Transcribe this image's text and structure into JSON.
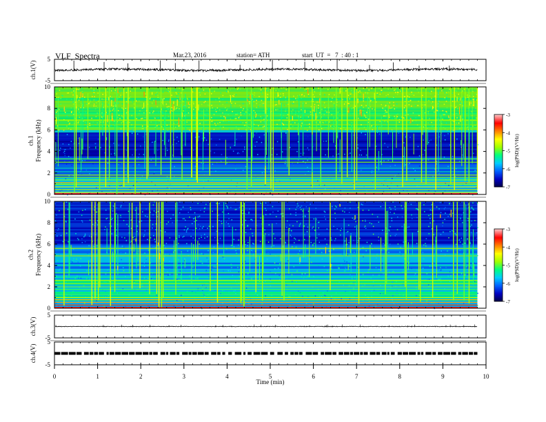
{
  "header": {
    "title": "VLF  Spectra",
    "date": "Mar.23, 2016",
    "station": "station= ATH",
    "start_ut": "start  UT  =   7  : 40 : 1"
  },
  "chart_data": [
    {
      "type": "line",
      "panel": "ch1-waveform",
      "ylabel": "ch.1(V)",
      "ylim": [
        -5,
        5
      ],
      "yticks": [
        "5",
        "-5"
      ],
      "x_extent": [
        0,
        9.8
      ],
      "baseline": 0.1,
      "spikes": [
        0.45,
        1.15,
        1.7,
        2.45,
        2.8,
        3.35,
        4.3,
        5.05,
        5.8,
        6.55,
        7.3,
        7.85,
        8.45,
        9.15
      ],
      "grid": false
    },
    {
      "type": "heatmap",
      "panel": "ch1-spectrogram",
      "ylabel": "ch.1\nFrequency  (kHz)",
      "ylim": [
        0,
        10
      ],
      "yticks": [
        "0",
        "2",
        "4",
        "6",
        "8",
        "10"
      ],
      "x_extent": [
        0,
        9.8
      ],
      "features": {
        "high_band_kHz": [
          6,
          10
        ],
        "low_band_kHz": [
          0,
          5.8
        ],
        "spheric_density": 1.4,
        "narrowband_lines_kHz": [
          0.2,
          0.45,
          0.7,
          0.95,
          1.1,
          1.35,
          1.6,
          1.8,
          2.1,
          2.45,
          3.0,
          3.3,
          5.8,
          6.2,
          6.9,
          7.5
        ]
      },
      "colorbar": {
        "label": "log(PSD)(V²/Hz)",
        "min": -7,
        "max": -3,
        "ticks": [
          "-3",
          "-4",
          "-5",
          "-6",
          "-7"
        ],
        "colormap": [
          "#000040",
          "#0000c0",
          "#0060ff",
          "#00ccff",
          "#00ff80",
          "#a0ff00",
          "#ffff00",
          "#ff8000",
          "#ff0000",
          "#ffc0c0"
        ]
      }
    },
    {
      "type": "heatmap",
      "panel": "ch2-spectrogram",
      "ylabel": "ch.2\nFrequency  (kHz)",
      "ylim": [
        0,
        10
      ],
      "yticks": [
        "0",
        "2",
        "4",
        "6",
        "8",
        "10"
      ],
      "x_extent": [
        0,
        9.8
      ],
      "features": {
        "spheric_density": 1.2,
        "narrowband_lines_kHz": [
          0.3,
          0.55,
          0.8,
          1.0,
          1.3,
          1.5,
          1.75,
          2.0,
          2.3,
          2.6,
          2.9,
          3.3,
          4.0,
          4.9,
          5.6
        ]
      },
      "colorbar": {
        "label": "log(PSD)(V²/Hz)",
        "min": -7,
        "max": -3,
        "ticks": [
          "-3",
          "-4",
          "-5",
          "-6",
          "-7"
        ],
        "colormap": [
          "#000040",
          "#0000c0",
          "#0060ff",
          "#00ccff",
          "#00ff80",
          "#a0ff00",
          "#ffff00",
          "#ff8000",
          "#ff0000",
          "#ffc0c0"
        ]
      }
    },
    {
      "type": "line",
      "panel": "ch3-waveform",
      "ylabel": "ch.3(V)",
      "ylim": [
        -5,
        5
      ],
      "yticks": [
        "5",
        "-5"
      ],
      "x_extent": [
        0,
        9.8
      ],
      "baseline": 0,
      "spikes": [],
      "grid": false
    },
    {
      "type": "line",
      "panel": "ch4-waveform",
      "ylabel": "ch.4(V)",
      "ylim": [
        -5,
        5
      ],
      "yticks": [
        "5",
        "-5"
      ],
      "x_extent": [
        0,
        9.8
      ],
      "baseline": 0,
      "dashed_level": 0,
      "grid": false
    }
  ],
  "x_axis": {
    "label": "Time  (min)",
    "range": [
      0,
      10
    ],
    "ticks": [
      "0",
      "1",
      "2",
      "3",
      "4",
      "5",
      "6",
      "7",
      "8",
      "9",
      "10"
    ]
  }
}
